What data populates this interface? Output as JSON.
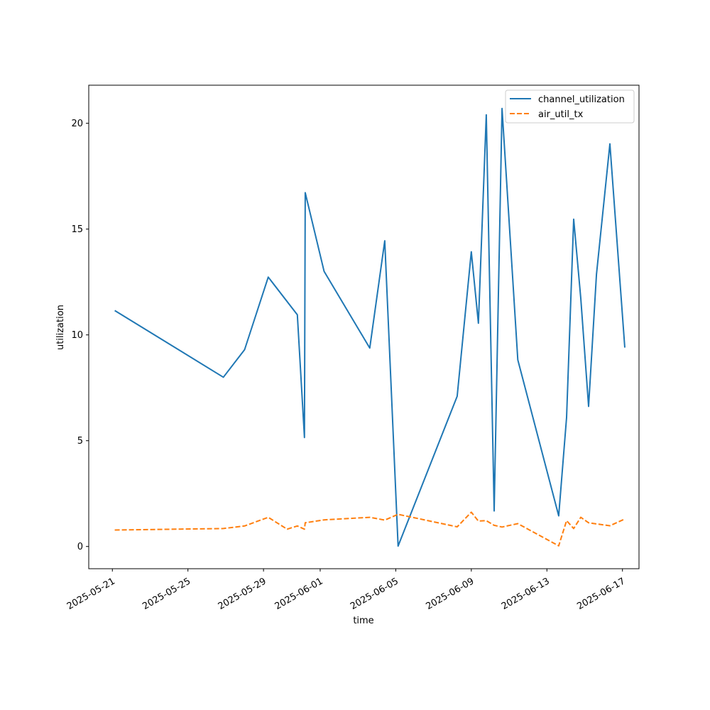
{
  "chart_data": {
    "type": "line",
    "title": "",
    "xlabel": "time",
    "ylabel": "utilization",
    "x_axis_type": "date",
    "xlim": [
      "2025-05-19T18:00",
      "2025-06-17T21:00"
    ],
    "ylim": [
      -1.05,
      21.8
    ],
    "grid": false,
    "legend_position": "top-right",
    "x_ticks": [
      "2025-05-21",
      "2025-05-25",
      "2025-05-29",
      "2025-06-01",
      "2025-06-05",
      "2025-06-09",
      "2025-06-13",
      "2025-06-17"
    ],
    "y_ticks": [
      0,
      5,
      10,
      15,
      20
    ],
    "colors": {
      "channel_utilization": "#1f77b4",
      "air_util_tx": "#ff7f0e"
    },
    "series": [
      {
        "name": "channel_utilization",
        "style": "solid",
        "points": [
          [
            "2025-05-21T03:00",
            11.15
          ],
          [
            "2025-05-26T21:00",
            8.0
          ],
          [
            "2025-05-28T00:00",
            9.3
          ],
          [
            "2025-05-29T06:00",
            12.73
          ],
          [
            "2025-05-30T19:00",
            10.95
          ],
          [
            "2025-05-31T04:00",
            5.15
          ],
          [
            "2025-05-31T05:00",
            16.72
          ],
          [
            "2025-06-01T05:00",
            13.0
          ],
          [
            "2025-06-03T15:00",
            9.38
          ],
          [
            "2025-06-04T10:00",
            14.45
          ],
          [
            "2025-06-05T03:00",
            0.02
          ],
          [
            "2025-06-08T06:00",
            7.1
          ],
          [
            "2025-06-09T00:00",
            13.93
          ],
          [
            "2025-06-09T09:00",
            10.55
          ],
          [
            "2025-06-09T19:00",
            20.4
          ],
          [
            "2025-06-10T05:00",
            1.68
          ],
          [
            "2025-06-10T15:00",
            20.7
          ],
          [
            "2025-06-11T11:00",
            8.82
          ],
          [
            "2025-06-13T15:00",
            1.45
          ],
          [
            "2025-06-14T01:00",
            6.1
          ],
          [
            "2025-06-14T10:00",
            15.47
          ],
          [
            "2025-06-14T19:00",
            11.73
          ],
          [
            "2025-06-15T05:00",
            6.62
          ],
          [
            "2025-06-15T15:00",
            12.86
          ],
          [
            "2025-06-16T08:00",
            19.03
          ],
          [
            "2025-06-17T03:00",
            9.4
          ]
        ]
      },
      {
        "name": "air_util_tx",
        "style": "dashed",
        "points": [
          [
            "2025-05-21T03:00",
            0.78
          ],
          [
            "2025-05-26T21:00",
            0.85
          ],
          [
            "2025-05-28T00:00",
            0.97
          ],
          [
            "2025-05-29T06:00",
            1.38
          ],
          [
            "2025-05-30T06:00",
            0.82
          ],
          [
            "2025-05-30T19:00",
            0.97
          ],
          [
            "2025-05-31T04:00",
            0.82
          ],
          [
            "2025-05-31T05:00",
            1.12
          ],
          [
            "2025-06-01T05:00",
            1.26
          ],
          [
            "2025-06-03T15:00",
            1.38
          ],
          [
            "2025-06-04T10:00",
            1.25
          ],
          [
            "2025-06-05T03:00",
            1.52
          ],
          [
            "2025-06-08T06:00",
            0.93
          ],
          [
            "2025-06-09T00:00",
            1.62
          ],
          [
            "2025-06-09T09:00",
            1.2
          ],
          [
            "2025-06-09T19:00",
            1.22
          ],
          [
            "2025-06-10T05:00",
            1.0
          ],
          [
            "2025-06-10T15:00",
            0.92
          ],
          [
            "2025-06-11T11:00",
            1.08
          ],
          [
            "2025-06-13T15:00",
            0.03
          ],
          [
            "2025-06-14T01:00",
            1.22
          ],
          [
            "2025-06-14T10:00",
            0.85
          ],
          [
            "2025-06-14T19:00",
            1.38
          ],
          [
            "2025-06-15T05:00",
            1.12
          ],
          [
            "2025-06-16T08:00",
            0.98
          ],
          [
            "2025-06-17T03:00",
            1.3
          ]
        ]
      }
    ]
  }
}
